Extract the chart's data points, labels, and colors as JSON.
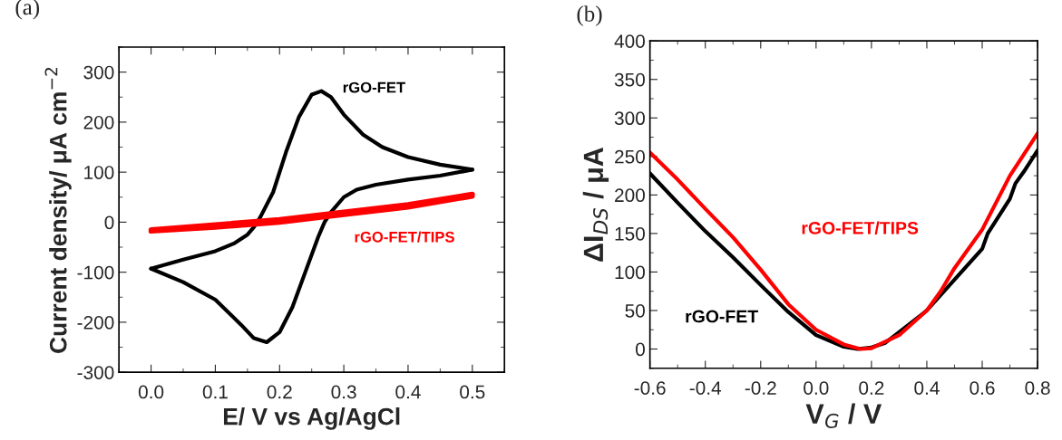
{
  "chart_data": [
    {
      "type": "line",
      "title": "(a)",
      "xlabel": "E/ V vs Ag/AgCl",
      "ylabel": "Current density/ μA cm$^{−2}$",
      "xlim": [
        -0.05,
        0.55
      ],
      "xticks": [
        {
          "value": 0.0,
          "label": "0.0"
        },
        0.1,
        0.2,
        0.3,
        0.4,
        0.5
      ],
      "ylim": [
        -300,
        350
      ],
      "yticks": [
        {
          "value": -300,
          "label": "-300"
        },
        {
          "value": -200,
          "label": "-200"
        },
        {
          "value": -100,
          "label": "-100"
        },
        0,
        100,
        200,
        300
      ],
      "grid": false,
      "legend": false,
      "series": [
        {
          "name": "rGO-FET",
          "color": "#000000",
          "x": [
            0,
            0.05,
            0.1,
            0.13,
            0.15,
            0.16,
            0.17,
            0.19,
            0.21,
            0.23,
            0.25,
            0.265,
            0.28,
            0.3,
            0.33,
            0.36,
            0.4,
            0.45,
            0.5
          ],
          "values": [
            -93,
            -75,
            -58,
            -42,
            -25,
            -10,
            10,
            60,
            140,
            210,
            255,
            262,
            250,
            215,
            175,
            150,
            130,
            115,
            105
          ]
        },
        {
          "color": "#000000",
          "x": [
            0.5,
            0.45,
            0.4,
            0.35,
            0.32,
            0.3,
            0.28,
            0.27,
            0.26,
            0.24,
            0.22,
            0.2,
            0.18,
            0.16,
            0.14,
            0.1,
            0.05,
            0
          ],
          "values": [
            105,
            93,
            85,
            75,
            65,
            50,
            20,
            0,
            -30,
            -100,
            -170,
            -220,
            -240,
            -232,
            -205,
            -155,
            -120,
            -93
          ]
        },
        {
          "name": "rGO-FET/TIPS",
          "color": "#ff0000",
          "x": [
            0,
            0.1,
            0.2,
            0.3,
            0.4,
            0.5,
            0.5,
            0.4,
            0.3,
            0.2,
            0.1,
            0
          ],
          "values": [
            -18,
            -10,
            0,
            15,
            30,
            52,
            56,
            35,
            20,
            5,
            -5,
            -15
          ]
        }
      ]
    },
    {
      "type": "line",
      "title": "(b)",
      "xlabel": "V$_{G}$ / V",
      "ylabel": "ΔI$_{DS}$ / μA",
      "xlim": [
        -0.6,
        0.8
      ],
      "xticks": [
        {
          "value": -0.6,
          "label": "-0.6"
        },
        {
          "value": -0.4,
          "label": "-0.4"
        },
        {
          "value": -0.2,
          "label": "-0.2"
        },
        {
          "value": 0.0,
          "label": "0.0"
        },
        0.2,
        0.4,
        0.6,
        0.8
      ],
      "ylim": [
        -25,
        400
      ],
      "yticks": [
        0,
        50,
        100,
        150,
        200,
        250,
        300,
        350,
        400
      ],
      "grid": false,
      "legend": false,
      "series": [
        {
          "name": "rGO-FET",
          "color": "#000000",
          "x": [
            -0.6,
            -0.5,
            -0.4,
            -0.3,
            -0.2,
            -0.1,
            0,
            0.1,
            0.15,
            0.2,
            0.25,
            0.3,
            0.4,
            0.45,
            0.5,
            0.6,
            0.62,
            0.7,
            0.72,
            0.75,
            0.8
          ],
          "values": [
            228,
            190,
            153,
            119,
            83,
            48,
            18,
            3,
            0,
            2,
            8,
            22,
            50,
            70,
            90,
            130,
            150,
            195,
            215,
            230,
            258
          ]
        },
        {
          "name": "rGO-FET/TIPS",
          "color": "#ff0000",
          "x": [
            -0.6,
            -0.5,
            -0.4,
            -0.3,
            -0.2,
            -0.1,
            0,
            0.1,
            0.16,
            0.2,
            0.3,
            0.4,
            0.45,
            0.5,
            0.6,
            0.7,
            0.8
          ],
          "values": [
            255,
            220,
            182,
            145,
            103,
            58,
            25,
            6,
            0,
            1,
            18,
            50,
            75,
            105,
            155,
            225,
            280
          ]
        }
      ]
    }
  ]
}
